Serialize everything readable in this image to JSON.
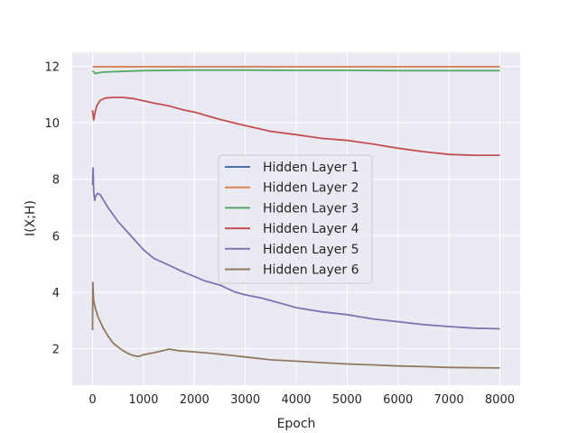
{
  "chart_data": {
    "type": "line",
    "title": "",
    "xlabel": "Epoch",
    "ylabel": "I(X;H)",
    "xlim": [
      -400,
      8400
    ],
    "ylim": [
      0.7,
      12.5
    ],
    "xticks": [
      0,
      1000,
      2000,
      3000,
      4000,
      5000,
      6000,
      7000,
      8000
    ],
    "yticks": [
      2,
      4,
      6,
      8,
      10,
      12
    ],
    "grid": true,
    "legend_position": "center",
    "series": [
      {
        "name": "Hidden Layer 1",
        "color": "#4c72b0",
        "x": [
          0,
          8000
        ],
        "y": [
          11.99,
          11.99
        ]
      },
      {
        "name": "Hidden Layer 2",
        "color": "#dd8452",
        "x": [
          0,
          8000
        ],
        "y": [
          11.99,
          11.99
        ]
      },
      {
        "name": "Hidden Layer 3",
        "color": "#55a868",
        "x": [
          0,
          50,
          200,
          500,
          1000,
          2000,
          3000,
          4000,
          5000,
          6000,
          7000,
          8000
        ],
        "y": [
          11.85,
          11.75,
          11.8,
          11.82,
          11.85,
          11.87,
          11.87,
          11.86,
          11.86,
          11.85,
          11.85,
          11.85
        ]
      },
      {
        "name": "Hidden Layer 4",
        "color": "#c44e52",
        "x": [
          0,
          20,
          40,
          80,
          150,
          250,
          400,
          600,
          800,
          1000,
          1200,
          1500,
          1800,
          2000,
          2500,
          3000,
          3500,
          4000,
          4500,
          5000,
          5500,
          6000,
          6500,
          7000,
          7500,
          8000
        ],
        "y": [
          10.45,
          10.1,
          10.3,
          10.6,
          10.8,
          10.88,
          10.9,
          10.9,
          10.86,
          10.78,
          10.7,
          10.6,
          10.45,
          10.38,
          10.12,
          9.9,
          9.7,
          9.58,
          9.45,
          9.38,
          9.25,
          9.1,
          8.98,
          8.88,
          8.85,
          8.85
        ]
      },
      {
        "name": "Hidden Layer 5",
        "color": "#8172b3",
        "x": [
          0,
          10,
          20,
          40,
          60,
          100,
          150,
          300,
          500,
          700,
          900,
          1000,
          1200,
          1500,
          1800,
          2000,
          2200,
          2500,
          2800,
          3000,
          3300,
          3600,
          4000,
          4500,
          5000,
          5500,
          6000,
          6500,
          7000,
          7500,
          8000
        ],
        "y": [
          7.8,
          8.4,
          7.6,
          7.25,
          7.4,
          7.5,
          7.45,
          7.0,
          6.5,
          6.1,
          5.7,
          5.5,
          5.2,
          4.95,
          4.7,
          4.55,
          4.4,
          4.25,
          4.0,
          3.9,
          3.8,
          3.65,
          3.45,
          3.3,
          3.2,
          3.05,
          2.95,
          2.85,
          2.78,
          2.72,
          2.7
        ]
      },
      {
        "name": "Hidden Layer 6",
        "color": "#937860",
        "x": [
          0,
          5,
          10,
          20,
          50,
          100,
          200,
          300,
          400,
          500,
          600,
          700,
          800,
          900,
          1000,
          1200,
          1400,
          1500,
          1700,
          2000,
          2200,
          2500,
          3000,
          3500,
          4000,
          4500,
          5000,
          5500,
          6000,
          6500,
          7000,
          7500,
          8000
        ],
        "y": [
          2.65,
          4.35,
          4.1,
          3.7,
          3.45,
          3.15,
          2.75,
          2.45,
          2.2,
          2.05,
          1.92,
          1.82,
          1.75,
          1.72,
          1.78,
          1.85,
          1.93,
          1.98,
          1.92,
          1.88,
          1.85,
          1.8,
          1.7,
          1.6,
          1.55,
          1.5,
          1.45,
          1.42,
          1.38,
          1.36,
          1.33,
          1.32,
          1.31
        ]
      }
    ]
  }
}
